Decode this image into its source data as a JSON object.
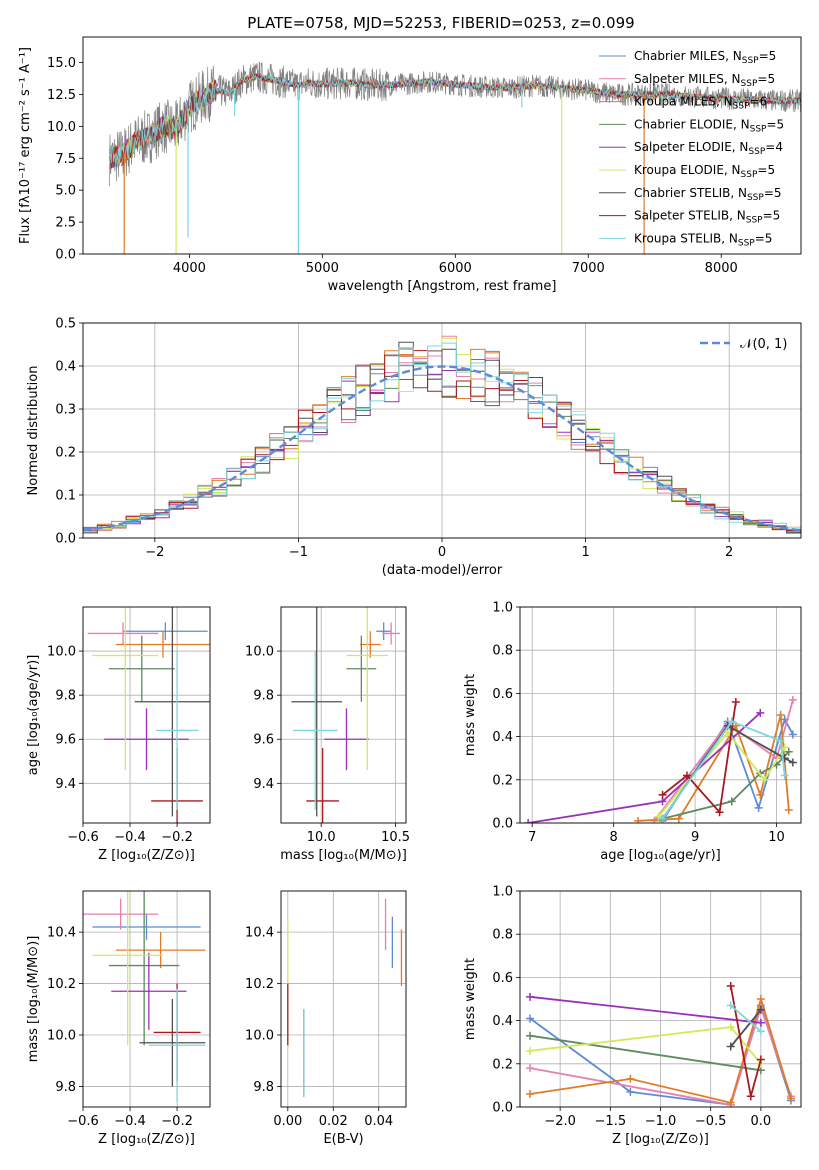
{
  "colors": {
    "chabrier_miles": "#5b8bd6",
    "salpeter_miles": "#e77fb0",
    "kroupa_miles": "#e07b2a",
    "chabrier_elodie": "#5e8a5e",
    "salpeter_elodie": "#9b30b8",
    "kroupa_elodie": "#d4e85a",
    "chabrier_stelib": "#505050",
    "salpeter_stelib": "#a81a22",
    "kroupa_stelib": "#7fd6dc",
    "observed": "#808080",
    "normal": "#5b8bd6",
    "grid": "#b0b0b0"
  },
  "chart_data": [
    {
      "id": "spectrum",
      "type": "line",
      "title": "PLATE=0758, MJD=52253, FIBERID=0253, z=0.099",
      "xlabel": "wavelength [Angstrom, rest frame]",
      "ylabel": "Flux [fλ10⁻¹⁷ erg cm⁻² s⁻¹ A⁻¹]",
      "xlim": [
        3200,
        8600
      ],
      "ylim": [
        0,
        17
      ],
      "xticks": [
        "4000",
        "5000",
        "6000",
        "7000",
        "8000"
      ],
      "yticks": [
        "0.0",
        "2.5",
        "5.0",
        "7.5",
        "10.0",
        "12.5",
        "15.0"
      ],
      "legend": [
        {
          "label": "Chabrier MILES, N",
          "sub": "SSP",
          "suffix": "=5"
        },
        {
          "label": "Salpeter MILES, N",
          "sub": "SSP",
          "suffix": "=5"
        },
        {
          "label": "Kroupa MILES, N",
          "sub": "SSP",
          "suffix": "=6"
        },
        {
          "label": "Chabrier ELODIE, N",
          "sub": "SSP",
          "suffix": "=5"
        },
        {
          "label": "Salpeter ELODIE, N",
          "sub": "SSP",
          "suffix": "=4"
        },
        {
          "label": "Kroupa ELODIE, N",
          "sub": "SSP",
          "suffix": "=5"
        },
        {
          "label": "Chabrier STELIB, N",
          "sub": "SSP",
          "suffix": "=5"
        },
        {
          "label": "Salpeter STELIB, N",
          "sub": "SSP",
          "suffix": "=5"
        },
        {
          "label": "Kroupa STELIB, N",
          "sub": "SSP",
          "suffix": "=5"
        }
      ],
      "legend_position": "top-right",
      "continuum": [
        [
          3400,
          7.5
        ],
        [
          3500,
          7.8
        ],
        [
          3600,
          8.8
        ],
        [
          3700,
          9.2
        ],
        [
          3800,
          10.0
        ],
        [
          3900,
          9.8
        ],
        [
          4000,
          11.5
        ],
        [
          4100,
          12.3
        ],
        [
          4200,
          12.8
        ],
        [
          4300,
          12.6
        ],
        [
          4400,
          13.6
        ],
        [
          4500,
          13.9
        ],
        [
          4600,
          13.7
        ],
        [
          4700,
          13.5
        ],
        [
          4800,
          13.2
        ],
        [
          4900,
          13.4
        ],
        [
          5000,
          13.3
        ],
        [
          5200,
          13.4
        ],
        [
          5400,
          13.2
        ],
        [
          5600,
          13.3
        ],
        [
          5800,
          13.5
        ],
        [
          6000,
          13.3
        ],
        [
          6200,
          13.1
        ],
        [
          6400,
          13.0
        ],
        [
          6600,
          13.2
        ],
        [
          6800,
          13.0
        ],
        [
          7000,
          12.8
        ],
        [
          7200,
          12.5
        ],
        [
          7400,
          12.5
        ],
        [
          7600,
          12.5
        ],
        [
          7800,
          12.3
        ],
        [
          8000,
          12.2
        ],
        [
          8200,
          12.1
        ],
        [
          8400,
          12.0
        ],
        [
          8600,
          12.0
        ]
      ],
      "spikes": [
        [
          3510,
          0
        ],
        [
          3900,
          0
        ],
        [
          3990,
          1.3
        ],
        [
          4820,
          0
        ],
        [
          6800,
          0
        ],
        [
          7420,
          0
        ],
        [
          6500,
          11.5
        ],
        [
          4340,
          10.8
        ]
      ]
    },
    {
      "id": "residuals",
      "type": "step",
      "xlabel": "(data-model)/error",
      "ylabel": "Normed distribution",
      "xlim": [
        -2.5,
        2.5
      ],
      "ylim": [
        0,
        0.5
      ],
      "xticks": [
        "−2",
        "−1",
        "0",
        "1",
        "2"
      ],
      "yticks": [
        "0.0",
        "0.1",
        "0.2",
        "0.3",
        "0.4",
        "0.5"
      ],
      "legend": [
        {
          "label": "𝒩(0, 1)"
        }
      ],
      "legend_position": "top-right",
      "bin_width": 0.1
    },
    {
      "id": "age_vs_z",
      "type": "errorbar",
      "xlabel": "Z [log₁₀(Z/Z⊙)]",
      "ylabel": "age  [log₁₀(age/yr)]",
      "xlim": [
        -0.6,
        -0.06
      ],
      "ylim": [
        9.22,
        10.2
      ],
      "xticks": [
        "−0.6",
        "−0.4",
        "−0.2"
      ],
      "yticks": [
        "9.4",
        "9.6",
        "9.8",
        "10.0"
      ],
      "points": [
        {
          "model": "chabrier_miles",
          "x": -0.25,
          "xerr": 0.18,
          "y": 10.09,
          "yerr": 0.04
        },
        {
          "model": "salpeter_miles",
          "x": -0.43,
          "xerr": 0.15,
          "y": 10.08,
          "yerr": 0.05
        },
        {
          "model": "kroupa_miles",
          "x": -0.26,
          "xerr": 0.2,
          "y": 10.03,
          "yerr": 0.06
        },
        {
          "model": "chabrier_elodie",
          "x": -0.35,
          "xerr": 0.14,
          "y": 9.92,
          "yerr": 0.15
        },
        {
          "model": "salpeter_elodie",
          "x": -0.33,
          "xerr": 0.18,
          "y": 9.6,
          "yerr": 0.14
        },
        {
          "model": "kroupa_elodie",
          "x": -0.42,
          "xerr": 0.14,
          "y": 9.98,
          "yerr": 0.52
        },
        {
          "model": "chabrier_stelib",
          "x": -0.22,
          "xerr": 0.16,
          "y": 9.77,
          "yerr": 0.52
        },
        {
          "model": "salpeter_stelib",
          "x": -0.2,
          "xerr": 0.11,
          "y": 9.32,
          "yerr": 0.24
        },
        {
          "model": "kroupa_stelib",
          "x": -0.2,
          "xerr": 0.09,
          "y": 9.64,
          "yerr": 0.36
        }
      ]
    },
    {
      "id": "age_vs_mass",
      "type": "errorbar",
      "xlabel": "mass [log₁₀(M/M⊙)]",
      "ylabel": "",
      "xlim": [
        9.73,
        10.57
      ],
      "ylim": [
        9.22,
        10.2
      ],
      "xticks": [
        "10.0",
        "10.5"
      ],
      "yticks": [
        "9.4",
        "9.6",
        "9.8",
        "10.0"
      ],
      "points": [
        {
          "model": "chabrier_miles",
          "x": 10.42,
          "xerr": 0.05,
          "y": 10.09,
          "yerr": 0.04
        },
        {
          "model": "salpeter_miles",
          "x": 10.47,
          "xerr": 0.06,
          "y": 10.08,
          "yerr": 0.05
        },
        {
          "model": "kroupa_miles",
          "x": 10.33,
          "xerr": 0.07,
          "y": 10.03,
          "yerr": 0.06
        },
        {
          "model": "chabrier_elodie",
          "x": 10.27,
          "xerr": 0.1,
          "y": 9.92,
          "yerr": 0.15
        },
        {
          "model": "salpeter_elodie",
          "x": 10.17,
          "xerr": 0.15,
          "y": 9.6,
          "yerr": 0.14
        },
        {
          "model": "kroupa_elodie",
          "x": 10.31,
          "xerr": 0.14,
          "y": 9.98,
          "yerr": 0.52
        },
        {
          "model": "chabrier_stelib",
          "x": 9.97,
          "xerr": 0.17,
          "y": 9.77,
          "yerr": 0.52
        },
        {
          "model": "salpeter_stelib",
          "x": 10.01,
          "xerr": 0.11,
          "y": 9.32,
          "yerr": 0.24
        },
        {
          "model": "kroupa_stelib",
          "x": 9.96,
          "xerr": 0.15,
          "y": 9.64,
          "yerr": 0.36
        }
      ]
    },
    {
      "id": "mass_weight_vs_age",
      "type": "line",
      "xlabel": "age  [log₁₀(age/yr)]",
      "ylabel": "mass weight",
      "xlim": [
        6.85,
        10.3
      ],
      "ylim": [
        0,
        1.0
      ],
      "xticks": [
        "7",
        "8",
        "9",
        "10"
      ],
      "yticks": [
        "0.0",
        "0.2",
        "0.4",
        "0.6",
        "0.8",
        "1.0"
      ],
      "series": [
        {
          "model": "chabrier_miles",
          "points": [
            [
              8.6,
              0.01
            ],
            [
              9.4,
              0.47
            ],
            [
              9.78,
              0.07
            ],
            [
              10.1,
              0.48
            ],
            [
              10.2,
              0.41
            ]
          ]
        },
        {
          "model": "salpeter_miles",
          "points": [
            [
              8.5,
              0.01
            ],
            [
              9.4,
              0.46
            ],
            [
              10.0,
              0.3
            ],
            [
              10.2,
              0.57
            ]
          ]
        },
        {
          "model": "kroupa_miles",
          "points": [
            [
              8.3,
              0.01
            ],
            [
              8.8,
              0.02
            ],
            [
              9.5,
              0.45
            ],
            [
              9.8,
              0.13
            ],
            [
              10.05,
              0.5
            ],
            [
              10.15,
              0.06
            ]
          ]
        },
        {
          "model": "chabrier_elodie",
          "points": [
            [
              8.6,
              0.02
            ],
            [
              9.45,
              0.1
            ],
            [
              9.8,
              0.23
            ],
            [
              10.0,
              0.27
            ],
            [
              10.15,
              0.33
            ]
          ]
        },
        {
          "model": "salpeter_elodie",
          "points": [
            [
              6.95,
              0.0
            ],
            [
              8.6,
              0.1
            ],
            [
              9.8,
              0.51
            ]
          ]
        },
        {
          "model": "kroupa_elodie",
          "points": [
            [
              8.55,
              0.03
            ],
            [
              9.4,
              0.42
            ],
            [
              9.85,
              0.2
            ],
            [
              10.1,
              0.35
            ]
          ]
        },
        {
          "model": "chabrier_stelib",
          "points": [
            [
              8.6,
              0.02
            ],
            [
              9.4,
              0.45
            ],
            [
              10.1,
              0.3
            ],
            [
              10.2,
              0.28
            ]
          ]
        },
        {
          "model": "salpeter_stelib",
          "points": [
            [
              8.6,
              0.13
            ],
            [
              8.9,
              0.22
            ],
            [
              9.3,
              0.05
            ],
            [
              9.5,
              0.56
            ]
          ]
        },
        {
          "model": "kroupa_stelib",
          "points": [
            [
              8.6,
              0.02
            ],
            [
              9.45,
              0.47
            ],
            [
              10.05,
              0.38
            ],
            [
              10.1,
              0.22
            ]
          ]
        }
      ]
    },
    {
      "id": "mass_vs_z",
      "type": "errorbar",
      "xlabel": "Z [log₁₀(Z/Z⊙)]",
      "ylabel": "mass [log₁₀(M/M⊙)]",
      "xlim": [
        -0.6,
        -0.06
      ],
      "ylim": [
        9.72,
        10.56
      ],
      "xticks": [
        "−0.6",
        "−0.4",
        "−0.2"
      ],
      "yticks": [
        "9.8",
        "10.0",
        "10.2",
        "10.4"
      ],
      "points": [
        {
          "model": "chabrier_miles",
          "x": -0.33,
          "xerr": 0.23,
          "y": 10.42,
          "yerr": 0.05
        },
        {
          "model": "salpeter_miles",
          "x": -0.44,
          "xerr": 0.16,
          "y": 10.47,
          "yerr": 0.06
        },
        {
          "model": "kroupa_miles",
          "x": -0.27,
          "xerr": 0.19,
          "y": 10.33,
          "yerr": 0.07
        },
        {
          "model": "chabrier_elodie",
          "x": -0.34,
          "xerr": 0.15,
          "y": 10.27,
          "yerr": 0.31
        },
        {
          "model": "salpeter_elodie",
          "x": -0.32,
          "xerr": 0.16,
          "y": 10.17,
          "yerr": 0.15
        },
        {
          "model": "kroupa_elodie",
          "x": -0.41,
          "xerr": 0.15,
          "y": 10.31,
          "yerr": 0.35
        },
        {
          "model": "chabrier_stelib",
          "x": -0.22,
          "xerr": 0.14,
          "y": 9.97,
          "yerr": 0.17
        },
        {
          "model": "salpeter_stelib",
          "x": -0.2,
          "xerr": 0.1,
          "y": 10.01,
          "yerr": 0.19
        },
        {
          "model": "kroupa_stelib",
          "x": -0.2,
          "xerr": 0.12,
          "y": 9.96,
          "yerr": 0.22
        }
      ]
    },
    {
      "id": "mass_vs_ebv",
      "type": "errorbar",
      "xlabel": "E(B-V)",
      "ylabel": "",
      "xlim": [
        -0.003,
        0.052
      ],
      "ylim": [
        9.72,
        10.56
      ],
      "xticks": [
        "0.00",
        "0.02",
        "0.04"
      ],
      "yticks": [
        "9.8",
        "10.0",
        "10.2",
        "10.4"
      ],
      "points": [
        {
          "model": "chabrier_miles",
          "x": 0.046,
          "xerr": 0,
          "y": 10.36,
          "yerr": 0.1
        },
        {
          "model": "salpeter_miles",
          "x": 0.043,
          "xerr": 0,
          "y": 10.43,
          "yerr": 0.1
        },
        {
          "model": "kroupa_miles",
          "x": 0.05,
          "xerr": 0,
          "y": 10.3,
          "yerr": 0.11
        },
        {
          "model": "kroupa_elodie",
          "x": 0.0,
          "xerr": 0,
          "y": 10.2,
          "yerr": 0.25
        },
        {
          "model": "salpeter_stelib",
          "x": 0.0,
          "xerr": 0,
          "y": 10.08,
          "yerr": 0.12
        },
        {
          "model": "chabrier_stelib",
          "x": 0.007,
          "xerr": 0,
          "y": 9.93,
          "yerr": 0.17
        },
        {
          "model": "kroupa_stelib",
          "x": 0.007,
          "xerr": 0,
          "y": 9.93,
          "yerr": 0.17
        }
      ]
    },
    {
      "id": "mass_weight_vs_z",
      "type": "line",
      "xlabel": "Z [log₁₀(Z/Z⊙)]",
      "ylabel": "mass weight",
      "xlim": [
        -2.4,
        0.4
      ],
      "ylim": [
        0,
        1.0
      ],
      "xticks": [
        "−2.0",
        "−1.5",
        "−1.0",
        "−0.5",
        "0.0"
      ],
      "yticks": [
        "0.0",
        "0.2",
        "0.4",
        "0.6",
        "0.8",
        "1.0"
      ],
      "series": [
        {
          "model": "chabrier_miles",
          "points": [
            [
              -2.3,
              0.41
            ],
            [
              -1.3,
              0.07
            ],
            [
              -0.3,
              0.01
            ],
            [
              0.0,
              0.47
            ],
            [
              0.3,
              0.03
            ]
          ]
        },
        {
          "model": "salpeter_miles",
          "points": [
            [
              -2.3,
              0.18
            ],
            [
              -0.3,
              0.01
            ],
            [
              0.0,
              0.46
            ],
            [
              0.3,
              0.05
            ]
          ]
        },
        {
          "model": "kroupa_miles",
          "points": [
            [
              -2.3,
              0.06
            ],
            [
              -1.3,
              0.13
            ],
            [
              -0.3,
              0.02
            ],
            [
              0.0,
              0.5
            ],
            [
              0.3,
              0.04
            ]
          ]
        },
        {
          "model": "chabrier_elodie",
          "points": [
            [
              -2.3,
              0.33
            ],
            [
              0.0,
              0.17
            ]
          ]
        },
        {
          "model": "salpeter_elodie",
          "points": [
            [
              -2.3,
              0.51
            ],
            [
              0.0,
              0.39
            ]
          ]
        },
        {
          "model": "kroupa_elodie",
          "points": [
            [
              -2.3,
              0.26
            ],
            [
              -0.3,
              0.37
            ],
            [
              0.0,
              0.2
            ]
          ]
        },
        {
          "model": "chabrier_stelib",
          "points": [
            [
              -0.3,
              0.28
            ],
            [
              0.0,
              0.45
            ]
          ]
        },
        {
          "model": "salpeter_stelib",
          "points": [
            [
              -0.3,
              0.56
            ],
            [
              -0.1,
              0.05
            ],
            [
              0.0,
              0.22
            ]
          ]
        },
        {
          "model": "kroupa_stelib",
          "points": [
            [
              -0.3,
              0.47
            ],
            [
              0.0,
              0.35
            ]
          ]
        }
      ]
    }
  ]
}
